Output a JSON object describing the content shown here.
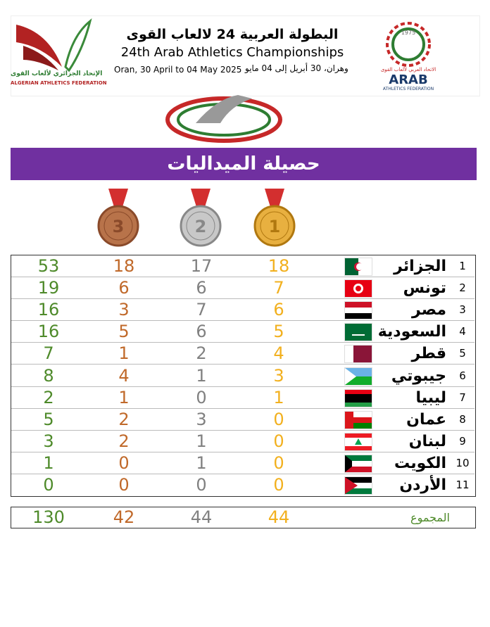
{
  "header": {
    "title_ar": "البطولة العربية 24 لالعاب القوى",
    "title_en": "24th Arab Athletics Championships",
    "dates_en": "Oran, 30 April to 04 May 2025",
    "dates_ar": "وهران، 30 أبريل إلى 04 مايو",
    "left_logo": [
      "الإتحاد الجزائري لألعاب القوى",
      "ALGERIAN ATHLETICS FEDERATION"
    ],
    "right_logo": [
      "1975",
      "الاتحاد العربي لألعاب القوى",
      "ARAB",
      "ATHLETICS FEDERATION"
    ]
  },
  "banner": "حصيلة الميداليات",
  "medal_labels": [
    "3",
    "2",
    "1"
  ],
  "table": {
    "rows": [
      [
        "1",
        "الجزائر",
        "18",
        "17",
        "18",
        "53"
      ],
      [
        "2",
        "تونس",
        "7",
        "6",
        "6",
        "19"
      ],
      [
        "3",
        "مصر",
        "6",
        "7",
        "3",
        "16"
      ],
      [
        "4",
        "السعودية",
        "5",
        "6",
        "5",
        "16"
      ],
      [
        "5",
        "قطر",
        "4",
        "2",
        "1",
        "7"
      ],
      [
        "6",
        "جيبوتي",
        "3",
        "1",
        "4",
        "8"
      ],
      [
        "7",
        "ليبيا",
        "1",
        "0",
        "1",
        "2"
      ],
      [
        "8",
        "عمان",
        "0",
        "3",
        "2",
        "5"
      ],
      [
        "9",
        "لبنان",
        "0",
        "1",
        "2",
        "3"
      ],
      [
        "10",
        "الكويت",
        "0",
        "1",
        "0",
        "1"
      ],
      [
        "11",
        "الأردن",
        "0",
        "0",
        "0",
        "0"
      ]
    ],
    "totals": [
      "المجموع",
      "44",
      "44",
      "42",
      "130"
    ]
  }
}
